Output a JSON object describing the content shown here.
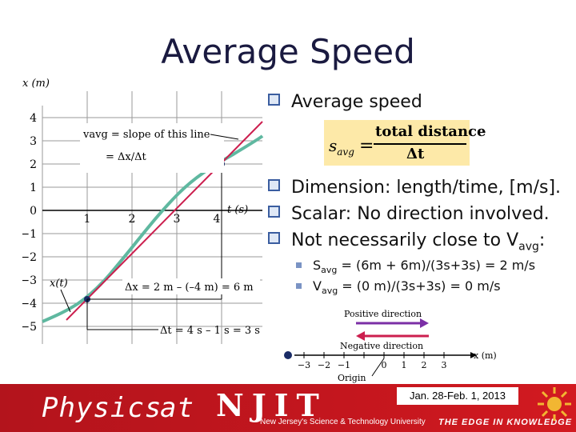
{
  "title": "Average Speed",
  "graph": {
    "x_axis_label": "t (s)",
    "y_axis_label": "x (m)",
    "y_ticks": [
      "4",
      "3",
      "2",
      "1",
      "0",
      "−1",
      "−2",
      "−3",
      "−4",
      "−5"
    ],
    "x_ticks": [
      "1",
      "2",
      "3",
      "4"
    ],
    "annotation_vavg_line1": "vavg = slope of this line",
    "annotation_vavg_line2": "= Δx/Δt",
    "xt_label": "x(t)",
    "delta_x_label": "Δx = 2 m – (–4 m) = 6 m",
    "delta_t_label": "Δt = 4 s – 1 s = 3 s"
  },
  "bullets": {
    "b1": "Average speed",
    "b2": "Dimension: length/time, [m/s].",
    "b3": "Scalar: No direction involved.",
    "b4_main": "Not necessarily close to V",
    "b4_sub": "avg",
    "b4_end": ":"
  },
  "formula": {
    "lhs": "s",
    "lhs_sub": "avg",
    "equals": "=",
    "numerator": "total distance",
    "denominator": "Δt"
  },
  "sub_bullets": {
    "s1_a": "S",
    "s1_sub": "avg",
    "s1_b": " = (6m + 6m)/(3s+3s) = 2 m/s",
    "s2_a": "V",
    "s2_sub": "avg",
    "s2_b": " = (0 m)/(3s+3s) = 0 m/s"
  },
  "axis_diagram": {
    "positive": "Positive direction",
    "negative": "Negative direction",
    "origin": "Origin",
    "x_label": "x (m)",
    "ticks": [
      "−3",
      "−2",
      "−1",
      "0",
      "1",
      "2",
      "3"
    ]
  },
  "footer": {
    "physics": "Physics",
    "at": "at",
    "njit": "NJIT",
    "tagline": "New Jersey's Science & Technology University",
    "edge": "THE EDGE IN KNOWLEDGE",
    "date": "Jan. 28-Feb. 1, 2013"
  },
  "colors": {
    "footer_red": "#c4161e",
    "formula_bg": "#fde9a8",
    "curve": "#5fb8a0",
    "line": "#cc1f4f",
    "arrow": "#7b2fa6"
  }
}
